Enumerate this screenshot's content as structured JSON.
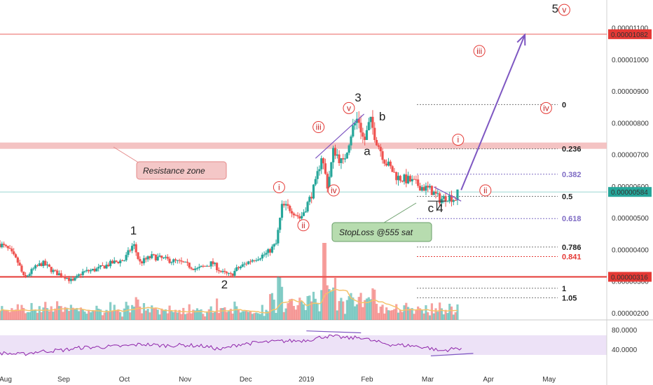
{
  "chart_data": {
    "type": "candlestick",
    "title": "",
    "colors": {
      "up": "#26a69a",
      "down": "#ef5350",
      "volume_ma": "#f5c26b",
      "rsi_line": "#8e24aa",
      "rsi_band": "#ede2f7",
      "resistance": "#e53935",
      "trend": "#7e57c2"
    },
    "price_axis": {
      "ylim": [
        1.8e-06,
        1.19e-05
      ],
      "ticks": [
        "0.00001100",
        "0.00001000",
        "0.00000900",
        "0.00000800",
        "0.00000700",
        "0.00000600",
        "0.00000500",
        "0.00000400",
        "0.00000300",
        "0.00000200"
      ],
      "tick_values": [
        1.1e-05,
        1e-05,
        9e-06,
        8e-06,
        7e-06,
        6e-06,
        5e-06,
        4e-06,
        3e-06,
        2e-06
      ],
      "current_price": {
        "label": "0.00000584",
        "value": 5.84e-06
      },
      "resistance_top": {
        "label": "0.00001082",
        "value": 1.082e-05
      },
      "support": {
        "label": "0.00000316",
        "value": 3.16e-06
      }
    },
    "rsi_axis": {
      "ticks": [
        "80.0000",
        "40.0000"
      ],
      "tick_values": [
        80,
        40
      ],
      "band": [
        30,
        70
      ],
      "ylim": [
        0,
        100
      ]
    },
    "time_axis": {
      "labels": [
        "Aug",
        "Sep",
        "Oct",
        "Nov",
        "Dec",
        "2019",
        "Feb",
        "Mar",
        "Apr",
        "May"
      ],
      "label_months": [
        0,
        1,
        2,
        3,
        4,
        5,
        6,
        7,
        8,
        9
      ],
      "xlim": [
        -0.05,
        9.95
      ]
    },
    "price_path": [
      [
        -0.05,
        4.2e-06
      ],
      [
        0.1,
        4e-06
      ],
      [
        0.25,
        3.6e-06
      ],
      [
        0.35,
        3.1e-06
      ],
      [
        0.5,
        3.4e-06
      ],
      [
        0.65,
        3.6e-06
      ],
      [
        0.85,
        3.3e-06
      ],
      [
        1.0,
        3.2e-06
      ],
      [
        1.15,
        3e-06
      ],
      [
        1.3,
        3.3e-06
      ],
      [
        1.55,
        3.4e-06
      ],
      [
        1.8,
        3.6e-06
      ],
      [
        2.0,
        3.7e-06
      ],
      [
        2.15,
        4.2e-06
      ],
      [
        2.25,
        3.6e-06
      ],
      [
        2.45,
        3.8e-06
      ],
      [
        2.7,
        3.7e-06
      ],
      [
        2.95,
        3.6e-06
      ],
      [
        3.2,
        3.4e-06
      ],
      [
        3.45,
        3.6e-06
      ],
      [
        3.6,
        3.3e-06
      ],
      [
        3.75,
        3.2e-06
      ],
      [
        3.85,
        3.4e-06
      ],
      [
        4.1,
        3.7e-06
      ],
      [
        4.35,
        3.9e-06
      ],
      [
        4.5,
        4.2e-06
      ],
      [
        4.6,
        5.4e-06
      ],
      [
        4.75,
        5.3e-06
      ],
      [
        4.9,
        5e-06
      ],
      [
        5.05,
        5.6e-06
      ],
      [
        5.15,
        6.1e-06
      ],
      [
        5.25,
        7e-06
      ],
      [
        5.35,
        6e-06
      ],
      [
        5.45,
        7.2e-06
      ],
      [
        5.6,
        6.7e-06
      ],
      [
        5.75,
        7.8e-06
      ],
      [
        5.85,
        8.2e-06
      ],
      [
        5.95,
        7.4e-06
      ],
      [
        6.05,
        8.1e-06
      ],
      [
        6.15,
        7.5e-06
      ],
      [
        6.3,
        6.8e-06
      ],
      [
        6.5,
        6.3e-06
      ],
      [
        6.7,
        6.2e-06
      ],
      [
        6.9,
        6e-06
      ],
      [
        7.05,
        5.9e-06
      ],
      [
        7.2,
        5.6e-06
      ],
      [
        7.35,
        5.7e-06
      ],
      [
        7.45,
        5.6e-06
      ],
      [
        7.5,
        5.84e-06
      ]
    ],
    "forecast_arrow": {
      "from": [
        7.55,
        5.9e-06
      ],
      "to": [
        8.6,
        1.08e-05
      ]
    },
    "rsi_path": [
      [
        -0.05,
        34
      ],
      [
        0.3,
        31
      ],
      [
        0.6,
        37
      ],
      [
        1.0,
        40
      ],
      [
        1.3,
        45
      ],
      [
        1.6,
        46
      ],
      [
        2.0,
        48
      ],
      [
        2.3,
        52
      ],
      [
        2.6,
        49
      ],
      [
        3.0,
        50
      ],
      [
        3.3,
        48
      ],
      [
        3.6,
        41
      ],
      [
        3.9,
        52
      ],
      [
        4.2,
        55
      ],
      [
        4.6,
        58
      ],
      [
        4.9,
        59
      ],
      [
        5.1,
        62
      ],
      [
        5.3,
        68
      ],
      [
        5.5,
        67
      ],
      [
        5.7,
        64
      ],
      [
        5.9,
        66
      ],
      [
        6.1,
        58
      ],
      [
        6.4,
        51
      ],
      [
        6.7,
        49
      ],
      [
        7.0,
        45
      ],
      [
        7.2,
        38
      ],
      [
        7.4,
        42
      ],
      [
        7.55,
        44
      ]
    ],
    "fib_levels": [
      {
        "label": "0",
        "value": 8.6e-06,
        "color": "#222222"
      },
      {
        "label": "0.236",
        "value": 7.2e-06,
        "color": "#222222"
      },
      {
        "label": "0.382",
        "value": 6.4e-06,
        "color": "#7e6bc4"
      },
      {
        "label": "0.5",
        "value": 5.7e-06,
        "color": "#222222"
      },
      {
        "label": "0.618",
        "value": 5e-06,
        "color": "#7e6bc4"
      },
      {
        "label": "0.786",
        "value": 4.1e-06,
        "color": "#222222"
      },
      {
        "label": "0.841",
        "value": 3.8e-06,
        "color": "#e53935"
      },
      {
        "label": "1",
        "value": 2.8e-06,
        "color": "#222222"
      },
      {
        "label": "1.05",
        "value": 2.5e-06,
        "color": "#222222"
      }
    ],
    "resistance_zone": {
      "label": "Resistance zone",
      "range": [
        7.2e-06,
        7.4e-06
      ]
    },
    "stop_loss": {
      "label": "StopLoss @555 sat",
      "value": 5.55e-06
    },
    "wave_labels": [
      {
        "text": "1",
        "x": 2.15,
        "y": 4.5e-06
      },
      {
        "text": "2",
        "x": 3.65,
        "y": 2.8e-06
      },
      {
        "text": "3",
        "x": 5.85,
        "y": 8.7e-06
      },
      {
        "text": "a",
        "x": 6.0,
        "y": 7e-06
      },
      {
        "text": "b",
        "x": 6.25,
        "y": 8.1e-06
      },
      {
        "text": "c",
        "x": 7.05,
        "y": 5.2e-06
      },
      {
        "text": "4",
        "x": 7.2,
        "y": 5.2e-06
      },
      {
        "text": "5",
        "x": 9.1,
        "y": 1.15e-05
      }
    ],
    "sub_wave_labels": [
      {
        "text": "i",
        "x": 4.55,
        "y": 5.9e-06
      },
      {
        "text": "ii",
        "x": 4.95,
        "y": 4.7e-06
      },
      {
        "text": "iii",
        "x": 5.2,
        "y": 7.8e-06
      },
      {
        "text": "iv",
        "x": 5.45,
        "y": 5.8e-06
      },
      {
        "text": "v",
        "x": 5.7,
        "y": 8.4e-06
      },
      {
        "text": "i",
        "x": 7.5,
        "y": 7.4e-06
      },
      {
        "text": "ii",
        "x": 7.95,
        "y": 5.8e-06
      },
      {
        "text": "iii",
        "x": 7.85,
        "y": 1.02e-05
      },
      {
        "text": "iv",
        "x": 8.95,
        "y": 8.4e-06
      },
      {
        "text": "v",
        "x": 9.25,
        "y": 1.15e-05
      }
    ]
  }
}
